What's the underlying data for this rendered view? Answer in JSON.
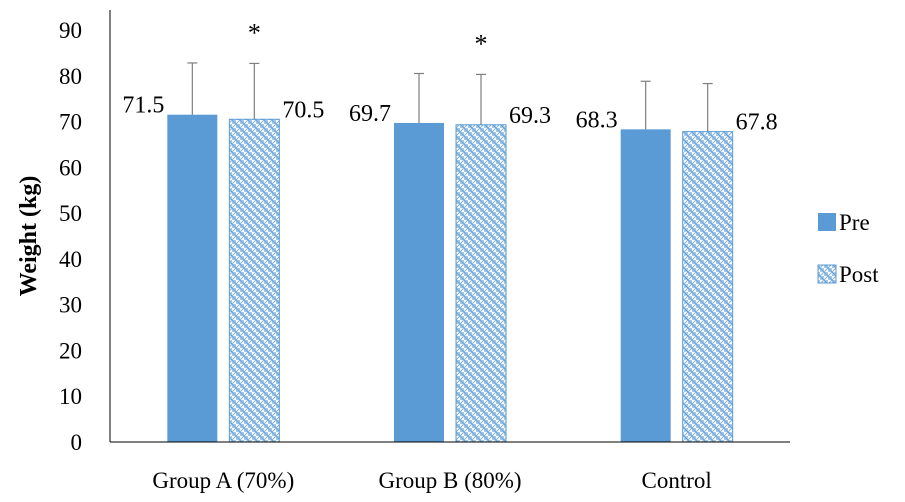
{
  "chart_data": {
    "type": "bar",
    "title": "",
    "xlabel": "",
    "ylabel": "Weight (kg)",
    "ylim": [
      0,
      90
    ],
    "yticks": [
      0,
      10,
      20,
      30,
      40,
      50,
      60,
      70,
      80,
      90
    ],
    "grid": false,
    "legend_position": "right",
    "categories": [
      "Group A (70%)",
      "Group B (80%)",
      "Control"
    ],
    "series": [
      {
        "name": "Pre",
        "pattern": "solid",
        "color": "#5B9BD5",
        "values": [
          71.5,
          69.7,
          68.3
        ],
        "error": [
          11.3,
          10.8,
          10.5
        ],
        "labels": [
          "71.5",
          "69.7",
          "68.3"
        ]
      },
      {
        "name": "Post",
        "pattern": "checkered",
        "color": "#5B9BD5",
        "values": [
          70.5,
          69.3,
          67.8
        ],
        "error": [
          12.2,
          11.0,
          10.5
        ],
        "labels": [
          "70.5",
          "69.3",
          "67.8"
        ]
      }
    ],
    "annotations": [
      {
        "text": "*",
        "category": "Group A (70%)",
        "series": "Post"
      },
      {
        "text": "*",
        "category": "Group B (80%)",
        "series": "Post"
      }
    ]
  }
}
